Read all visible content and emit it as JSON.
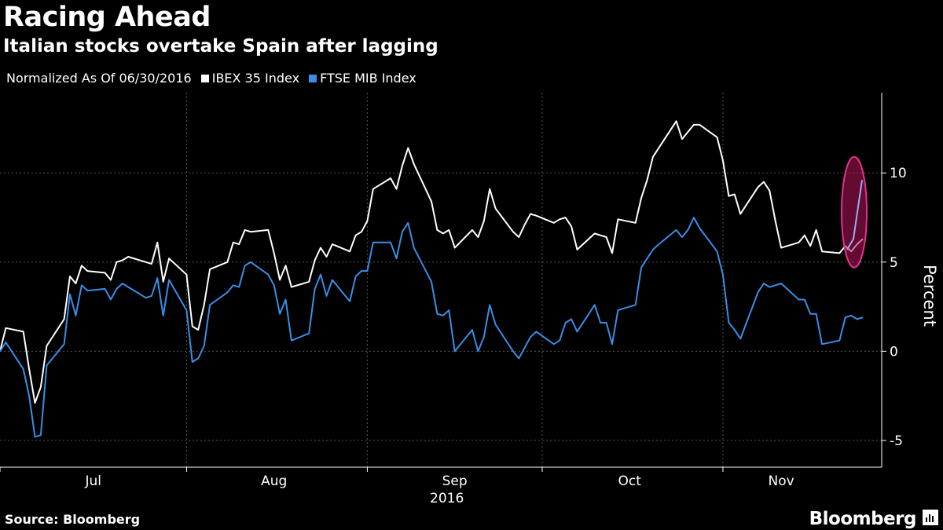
{
  "header": {
    "title": "Racing Ahead",
    "subtitle": "Italian stocks overtake Spain after lagging"
  },
  "legend": {
    "note": "Normalized As Of 06/30/2016",
    "items": [
      {
        "label": "IBEX 35 Index",
        "color": "#ffffff"
      },
      {
        "label": "FTSE MIB Index",
        "color": "#3a8ee6"
      }
    ]
  },
  "footer": {
    "source": "Source: Bloomberg",
    "brand": "Bloomberg"
  },
  "chart_data": {
    "type": "line",
    "ylabel": "Percent",
    "ylim": [
      -6.5,
      14.5
    ],
    "yticks": [
      -5,
      0,
      5,
      10
    ],
    "x_start": "2016-06-30",
    "x_end": "2016-11-25",
    "month_labels": [
      "Jul",
      "Aug",
      "Sep",
      "Oct",
      "Nov"
    ],
    "year_label": "2016",
    "grid": true,
    "highlight": {
      "type": "ellipse",
      "color": "#e0348a"
    },
    "series": [
      {
        "name": "IBEX 35 Index",
        "color": "#ffffff",
        "points": [
          [
            "2016-06-30",
            0
          ],
          [
            "2016-07-01",
            1.3
          ],
          [
            "2016-07-04",
            1.1
          ],
          [
            "2016-07-05",
            -1.0
          ],
          [
            "2016-07-06",
            -2.9
          ],
          [
            "2016-07-07",
            -2.0
          ],
          [
            "2016-07-08",
            0.3
          ],
          [
            "2016-07-11",
            1.8
          ],
          [
            "2016-07-12",
            4.2
          ],
          [
            "2016-07-13",
            3.8
          ],
          [
            "2016-07-14",
            4.8
          ],
          [
            "2016-07-15",
            4.5
          ],
          [
            "2016-07-18",
            4.4
          ],
          [
            "2016-07-19",
            4.0
          ],
          [
            "2016-07-20",
            5.0
          ],
          [
            "2016-07-21",
            5.1
          ],
          [
            "2016-07-22",
            5.3
          ],
          [
            "2016-07-25",
            5.0
          ],
          [
            "2016-07-26",
            4.9
          ],
          [
            "2016-07-27",
            6.1
          ],
          [
            "2016-07-28",
            3.9
          ],
          [
            "2016-07-29",
            5.2
          ],
          [
            "2016-08-01",
            4.3
          ],
          [
            "2016-08-02",
            1.4
          ],
          [
            "2016-08-03",
            1.2
          ],
          [
            "2016-08-04",
            2.6
          ],
          [
            "2016-08-05",
            4.6
          ],
          [
            "2016-08-08",
            5.0
          ],
          [
            "2016-08-09",
            6.1
          ],
          [
            "2016-08-10",
            6.0
          ],
          [
            "2016-08-11",
            6.8
          ],
          [
            "2016-08-12",
            6.7
          ],
          [
            "2016-08-15",
            6.8
          ],
          [
            "2016-08-16",
            5.5
          ],
          [
            "2016-08-17",
            4.0
          ],
          [
            "2016-08-18",
            4.8
          ],
          [
            "2016-08-19",
            3.6
          ],
          [
            "2016-08-22",
            3.9
          ],
          [
            "2016-08-23",
            5.1
          ],
          [
            "2016-08-24",
            5.8
          ],
          [
            "2016-08-25",
            5.3
          ],
          [
            "2016-08-26",
            6.0
          ],
          [
            "2016-08-29",
            5.6
          ],
          [
            "2016-08-30",
            6.5
          ],
          [
            "2016-08-31",
            6.7
          ],
          [
            "2016-09-01",
            7.3
          ],
          [
            "2016-09-02",
            9.1
          ],
          [
            "2016-09-05",
            9.7
          ],
          [
            "2016-09-06",
            9.1
          ],
          [
            "2016-09-07",
            10.4
          ],
          [
            "2016-09-08",
            11.4
          ],
          [
            "2016-09-09",
            10.5
          ],
          [
            "2016-09-12",
            8.4
          ],
          [
            "2016-09-13",
            6.8
          ],
          [
            "2016-09-14",
            6.6
          ],
          [
            "2016-09-15",
            6.8
          ],
          [
            "2016-09-16",
            5.8
          ],
          [
            "2016-09-19",
            6.8
          ],
          [
            "2016-09-20",
            6.4
          ],
          [
            "2016-09-21",
            7.3
          ],
          [
            "2016-09-22",
            9.1
          ],
          [
            "2016-09-23",
            8.0
          ],
          [
            "2016-09-26",
            6.7
          ],
          [
            "2016-09-27",
            6.4
          ],
          [
            "2016-09-28",
            7.1
          ],
          [
            "2016-09-29",
            7.7
          ],
          [
            "2016-09-30",
            7.6
          ],
          [
            "2016-10-03",
            7.2
          ],
          [
            "2016-10-04",
            7.4
          ],
          [
            "2016-10-05",
            7.5
          ],
          [
            "2016-10-06",
            7.0
          ],
          [
            "2016-10-07",
            5.7
          ],
          [
            "2016-10-10",
            6.6
          ],
          [
            "2016-10-11",
            6.5
          ],
          [
            "2016-10-12",
            6.4
          ],
          [
            "2016-10-13",
            5.5
          ],
          [
            "2016-10-14",
            7.4
          ],
          [
            "2016-10-17",
            7.2
          ],
          [
            "2016-10-18",
            8.6
          ],
          [
            "2016-10-19",
            9.6
          ],
          [
            "2016-10-20",
            10.9
          ],
          [
            "2016-10-21",
            11.4
          ],
          [
            "2016-10-24",
            12.9
          ],
          [
            "2016-10-25",
            11.9
          ],
          [
            "2016-10-26",
            12.3
          ],
          [
            "2016-10-27",
            12.7
          ],
          [
            "2016-10-28",
            12.7
          ],
          [
            "2016-10-31",
            12.0
          ],
          [
            "2016-11-01",
            10.7
          ],
          [
            "2016-11-02",
            8.7
          ],
          [
            "2016-11-03",
            8.8
          ],
          [
            "2016-11-04",
            7.7
          ],
          [
            "2016-11-07",
            9.2
          ],
          [
            "2016-11-08",
            9.5
          ],
          [
            "2016-11-09",
            9.0
          ],
          [
            "2016-11-10",
            7.3
          ],
          [
            "2016-11-11",
            5.8
          ],
          [
            "2016-11-14",
            6.1
          ],
          [
            "2016-11-15",
            6.5
          ],
          [
            "2016-11-16",
            5.9
          ],
          [
            "2016-11-17",
            6.8
          ],
          [
            "2016-11-18",
            5.6
          ],
          [
            "2016-11-21",
            5.5
          ],
          [
            "2016-11-22",
            5.9
          ],
          [
            "2016-11-23",
            5.6
          ],
          [
            "2016-11-24",
            6.0
          ],
          [
            "2016-11-25",
            6.3
          ]
        ]
      },
      {
        "name": "FTSE MIB Index",
        "color": "#3a8ee6",
        "points": [
          [
            "2016-06-30",
            0
          ],
          [
            "2016-07-01",
            0.5
          ],
          [
            "2016-07-04",
            -1.0
          ],
          [
            "2016-07-05",
            -2.5
          ],
          [
            "2016-07-06",
            -4.8
          ],
          [
            "2016-07-07",
            -4.7
          ],
          [
            "2016-07-08",
            -0.8
          ],
          [
            "2016-07-11",
            0.4
          ],
          [
            "2016-07-12",
            3.2
          ],
          [
            "2016-07-13",
            2.0
          ],
          [
            "2016-07-14",
            3.7
          ],
          [
            "2016-07-15",
            3.4
          ],
          [
            "2016-07-18",
            3.5
          ],
          [
            "2016-07-19",
            2.9
          ],
          [
            "2016-07-20",
            3.5
          ],
          [
            "2016-07-21",
            3.8
          ],
          [
            "2016-07-22",
            3.6
          ],
          [
            "2016-07-25",
            3.0
          ],
          [
            "2016-07-26",
            3.1
          ],
          [
            "2016-07-27",
            4.1
          ],
          [
            "2016-07-28",
            2.0
          ],
          [
            "2016-07-29",
            4.0
          ],
          [
            "2016-08-01",
            2.3
          ],
          [
            "2016-08-02",
            -0.6
          ],
          [
            "2016-08-03",
            -0.4
          ],
          [
            "2016-08-04",
            0.3
          ],
          [
            "2016-08-05",
            2.6
          ],
          [
            "2016-08-08",
            3.3
          ],
          [
            "2016-08-09",
            3.7
          ],
          [
            "2016-08-10",
            3.6
          ],
          [
            "2016-08-11",
            4.8
          ],
          [
            "2016-08-12",
            5.0
          ],
          [
            "2016-08-15",
            4.3
          ],
          [
            "2016-08-16",
            3.7
          ],
          [
            "2016-08-17",
            2.1
          ],
          [
            "2016-08-18",
            2.9
          ],
          [
            "2016-08-19",
            0.6
          ],
          [
            "2016-08-22",
            1.0
          ],
          [
            "2016-08-23",
            3.5
          ],
          [
            "2016-08-24",
            4.3
          ],
          [
            "2016-08-25",
            3.1
          ],
          [
            "2016-08-26",
            4.0
          ],
          [
            "2016-08-29",
            2.8
          ],
          [
            "2016-08-30",
            4.2
          ],
          [
            "2016-08-31",
            4.5
          ],
          [
            "2016-09-01",
            4.5
          ],
          [
            "2016-09-02",
            6.1
          ],
          [
            "2016-09-05",
            6.1
          ],
          [
            "2016-09-06",
            5.2
          ],
          [
            "2016-09-07",
            6.7
          ],
          [
            "2016-09-08",
            7.2
          ],
          [
            "2016-09-09",
            5.8
          ],
          [
            "2016-09-12",
            3.9
          ],
          [
            "2016-09-13",
            2.1
          ],
          [
            "2016-09-14",
            2.0
          ],
          [
            "2016-09-15",
            2.3
          ],
          [
            "2016-09-16",
            0.0
          ],
          [
            "2016-09-19",
            1.2
          ],
          [
            "2016-09-20",
            0.0
          ],
          [
            "2016-09-21",
            0.8
          ],
          [
            "2016-09-22",
            2.6
          ],
          [
            "2016-09-23",
            1.5
          ],
          [
            "2016-09-26",
            0.0
          ],
          [
            "2016-09-27",
            -0.4
          ],
          [
            "2016-09-28",
            0.2
          ],
          [
            "2016-09-29",
            0.8
          ],
          [
            "2016-09-30",
            1.1
          ],
          [
            "2016-10-03",
            0.4
          ],
          [
            "2016-10-04",
            0.6
          ],
          [
            "2016-10-05",
            1.6
          ],
          [
            "2016-10-06",
            1.8
          ],
          [
            "2016-10-07",
            1.1
          ],
          [
            "2016-10-10",
            2.6
          ],
          [
            "2016-10-11",
            1.6
          ],
          [
            "2016-10-12",
            1.6
          ],
          [
            "2016-10-13",
            0.4
          ],
          [
            "2016-10-14",
            2.3
          ],
          [
            "2016-10-17",
            2.6
          ],
          [
            "2016-10-18",
            4.7
          ],
          [
            "2016-10-19",
            5.2
          ],
          [
            "2016-10-20",
            5.7
          ],
          [
            "2016-10-21",
            6.0
          ],
          [
            "2016-10-24",
            6.8
          ],
          [
            "2016-10-25",
            6.4
          ],
          [
            "2016-10-26",
            6.8
          ],
          [
            "2016-10-27",
            7.5
          ],
          [
            "2016-10-28",
            6.9
          ],
          [
            "2016-10-31",
            5.6
          ],
          [
            "2016-11-01",
            4.3
          ],
          [
            "2016-11-02",
            1.6
          ],
          [
            "2016-11-03",
            1.2
          ],
          [
            "2016-11-04",
            0.7
          ],
          [
            "2016-11-07",
            3.3
          ],
          [
            "2016-11-08",
            3.8
          ],
          [
            "2016-11-09",
            3.6
          ],
          [
            "2016-11-10",
            3.7
          ],
          [
            "2016-11-11",
            3.8
          ],
          [
            "2016-11-14",
            2.9
          ],
          [
            "2016-11-15",
            2.9
          ],
          [
            "2016-11-16",
            2.1
          ],
          [
            "2016-11-17",
            2.1
          ],
          [
            "2016-11-18",
            0.4
          ],
          [
            "2016-11-21",
            0.6
          ],
          [
            "2016-11-22",
            1.9
          ],
          [
            "2016-11-23",
            2.0
          ],
          [
            "2016-11-24",
            1.8
          ],
          [
            "2016-11-25",
            1.9
          ]
        ]
      }
    ]
  }
}
